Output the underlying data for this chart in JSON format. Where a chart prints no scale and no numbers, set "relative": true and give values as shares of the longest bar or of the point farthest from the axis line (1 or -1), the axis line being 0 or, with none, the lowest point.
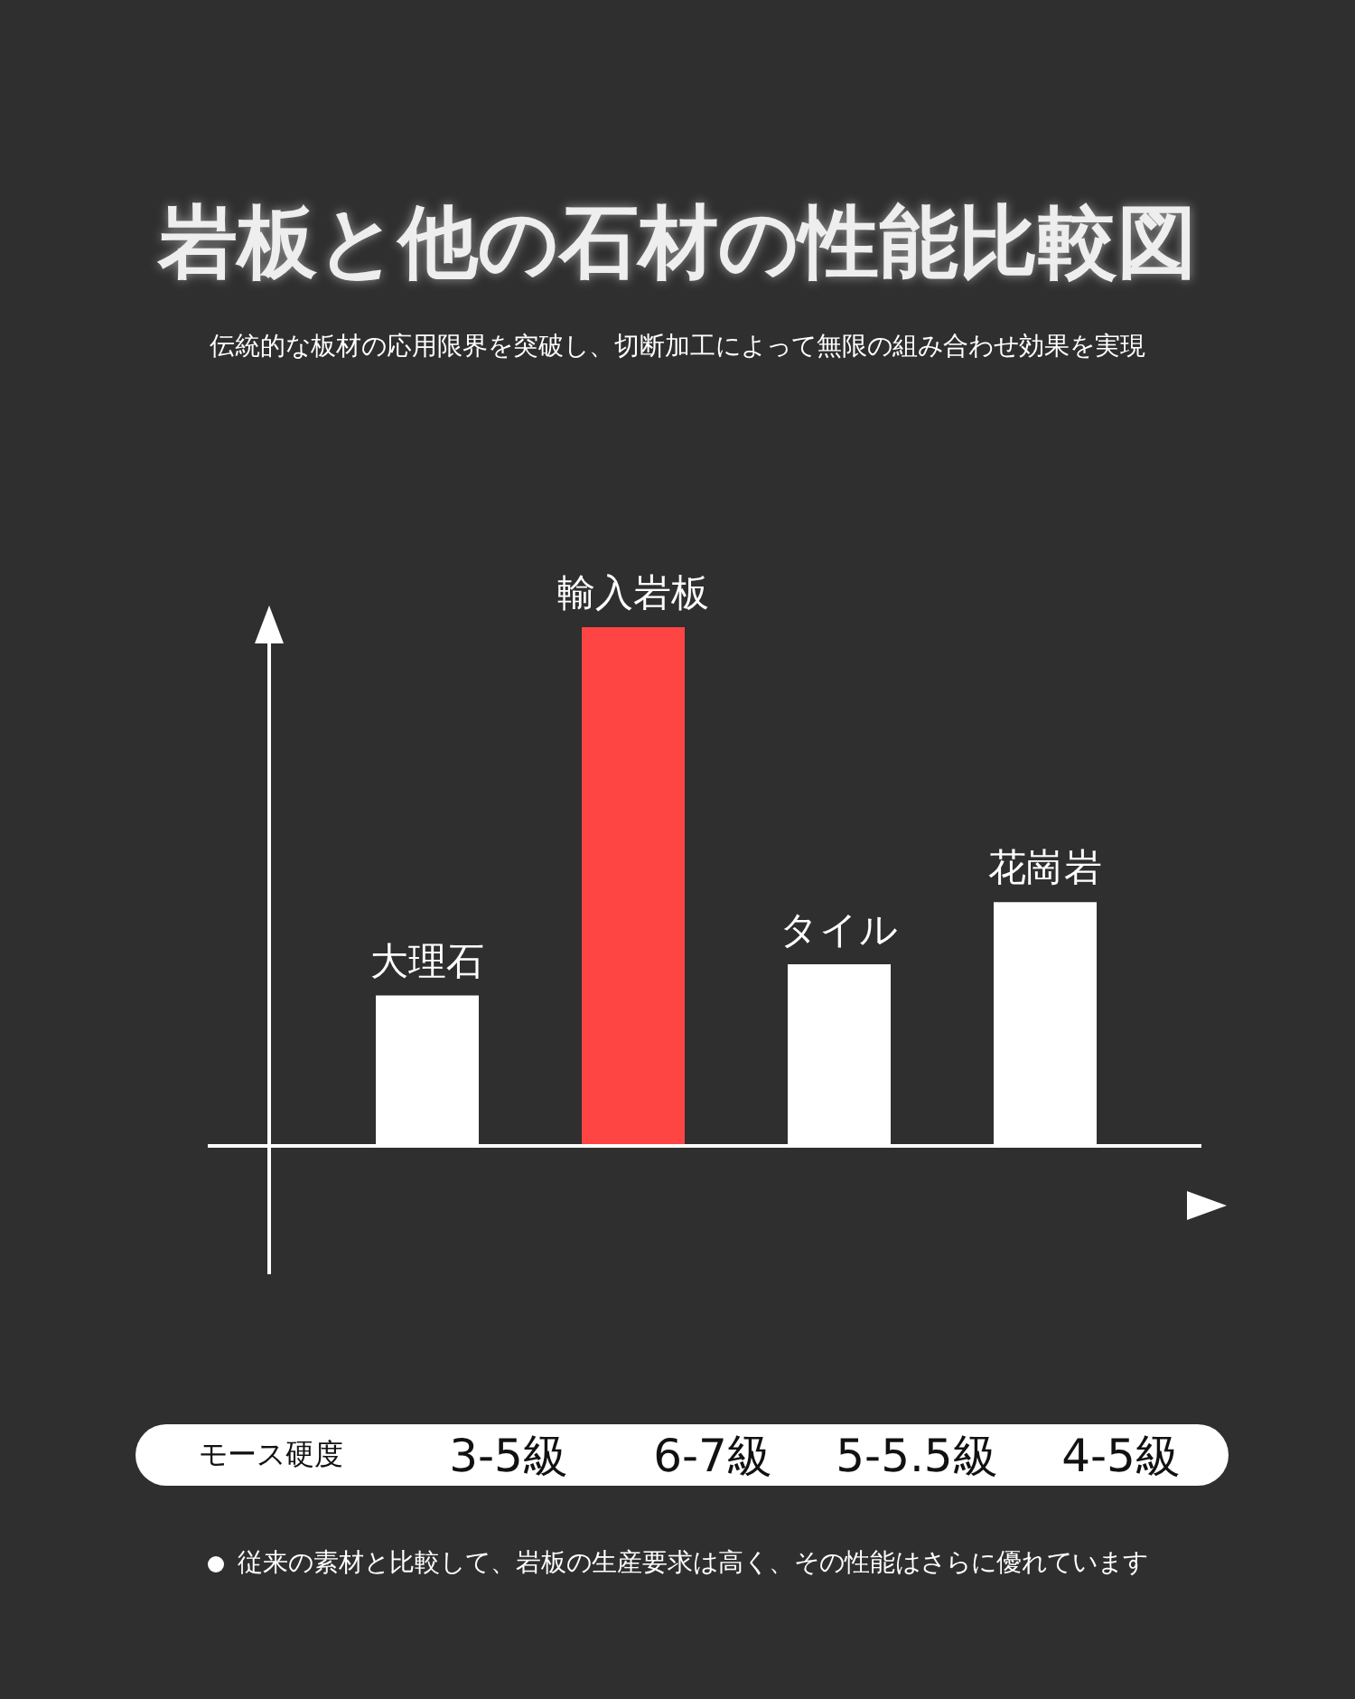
{
  "chart_data": {
    "type": "bar",
    "title": "岩板と他の石材の性能比較図",
    "subtitle": "伝統的な板材の応用限界を突破し、切断加工によって無限の組み合わせ効果を実現",
    "categories": [
      "大理石",
      "輸入岩板",
      "タイル",
      "花崗岩"
    ],
    "values": [
      0.29,
      1,
      0.35,
      0.47
    ],
    "colors": [
      "#ffffff",
      "#ff4444",
      "#ffffff",
      "#ffffff"
    ],
    "relative": true,
    "annotations": [
      "モース硬度",
      "3-5級",
      "6-7級",
      "5-5.5級",
      "4-5級",
      "従来の素材と比較して、岩板の生産要求は高く、その性能はさらに優れています"
    ],
    "grid": false,
    "legend": false
  }
}
